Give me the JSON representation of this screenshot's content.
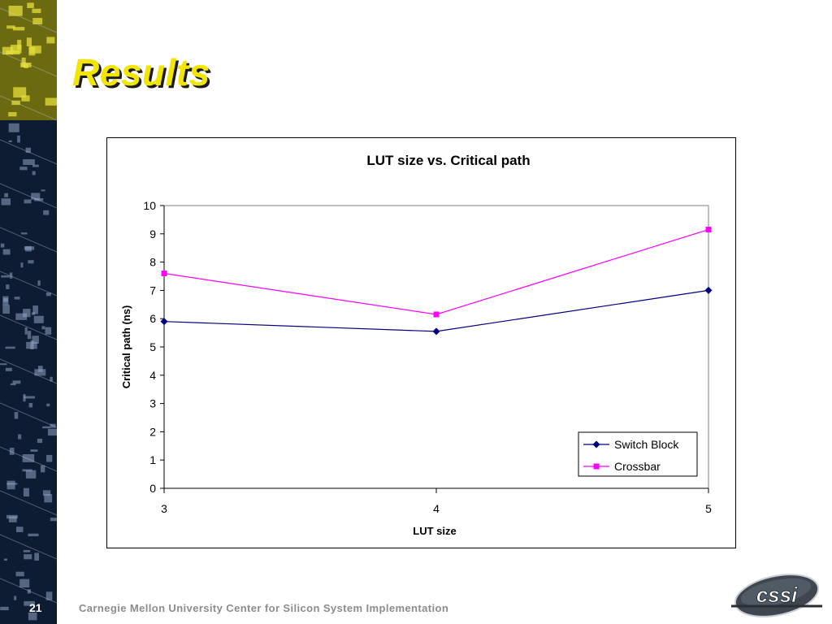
{
  "slide": {
    "title": "Results",
    "page_number": "21",
    "footer": "Carnegie Mellon University Center for Silicon System Implementation",
    "logo_text": "cssi"
  },
  "colors": {
    "title": "#f2e600",
    "series_switch_block": "#000080",
    "series_crossbar": "#ff00ff",
    "footer_text": "#8c8c8c",
    "sidebar_dark": "#0e1c33"
  },
  "chart_data": {
    "type": "line",
    "title": "LUT size vs. Critical path",
    "xlabel": "LUT size",
    "ylabel": "Critical path (ns)",
    "categories": [
      "3",
      "4",
      "5"
    ],
    "ylim": [
      0,
      10
    ],
    "yticks": [
      "0",
      "1",
      "2",
      "3",
      "4",
      "5",
      "6",
      "7",
      "8",
      "9",
      "10"
    ],
    "grid": false,
    "legend_position": "bottom-right",
    "series": [
      {
        "name": "Switch Block",
        "values": [
          5.9,
          5.55,
          7.0
        ],
        "color": "#000080",
        "marker": "diamond"
      },
      {
        "name": "Crossbar",
        "values": [
          7.6,
          6.15,
          9.15
        ],
        "color": "#ff00ff",
        "marker": "square"
      }
    ]
  }
}
